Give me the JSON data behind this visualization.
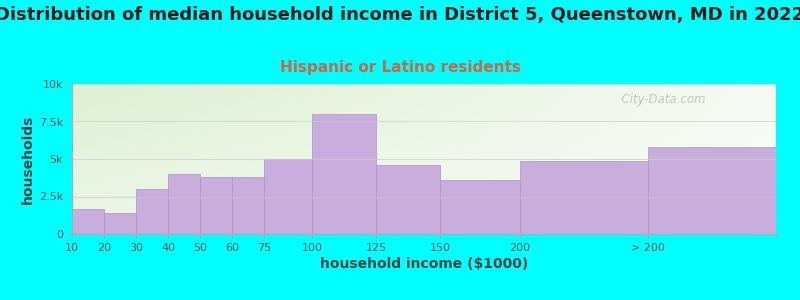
{
  "title": "Distribution of median household income in District 5, Queenstown, MD in 2022",
  "subtitle": "Hispanic or Latino residents",
  "xlabel": "household income ($1000)",
  "ylabel": "households",
  "background_color": "#00ffff",
  "bar_color": "#c9aedd",
  "bar_edge_color": "#b090c8",
  "categories": [
    "10",
    "20",
    "30",
    "40",
    "50",
    "60",
    "75",
    "100",
    "125",
    "150",
    "200",
    "> 200"
  ],
  "values": [
    1700,
    1400,
    3000,
    4000,
    3800,
    3800,
    5000,
    8000,
    4600,
    3600,
    4900,
    5800
  ],
  "bar_widths": [
    1,
    1,
    1,
    1,
    1,
    1,
    1.5,
    2,
    2,
    2.5,
    4,
    4
  ],
  "bar_lefts": [
    0,
    1,
    2,
    3,
    4,
    5,
    6,
    7.5,
    9.5,
    11.5,
    14,
    18
  ],
  "xtick_positions": [
    0,
    1,
    2,
    3,
    4,
    5,
    6,
    7.5,
    9.5,
    11.5,
    14,
    18,
    22
  ],
  "xtick_labels": [
    "10",
    "20",
    "30",
    "40",
    "50",
    "60",
    "75",
    "100",
    "125",
    "150",
    "200",
    "> 200",
    ""
  ],
  "xlim": [
    0,
    22
  ],
  "ylim": [
    0,
    10000
  ],
  "yticks": [
    0,
    2500,
    5000,
    7500,
    10000
  ],
  "ytick_labels": [
    "0",
    "2.5k",
    "5k",
    "7.5k",
    "10k"
  ],
  "watermark": "  City-Data.com",
  "title_fontsize": 13,
  "subtitle_fontsize": 11,
  "subtitle_color": "#cc6644",
  "title_color": "#1a1a1a",
  "axis_label_color": "#444444",
  "tick_color": "#555555",
  "tick_fontsize": 8,
  "label_fontsize": 10
}
